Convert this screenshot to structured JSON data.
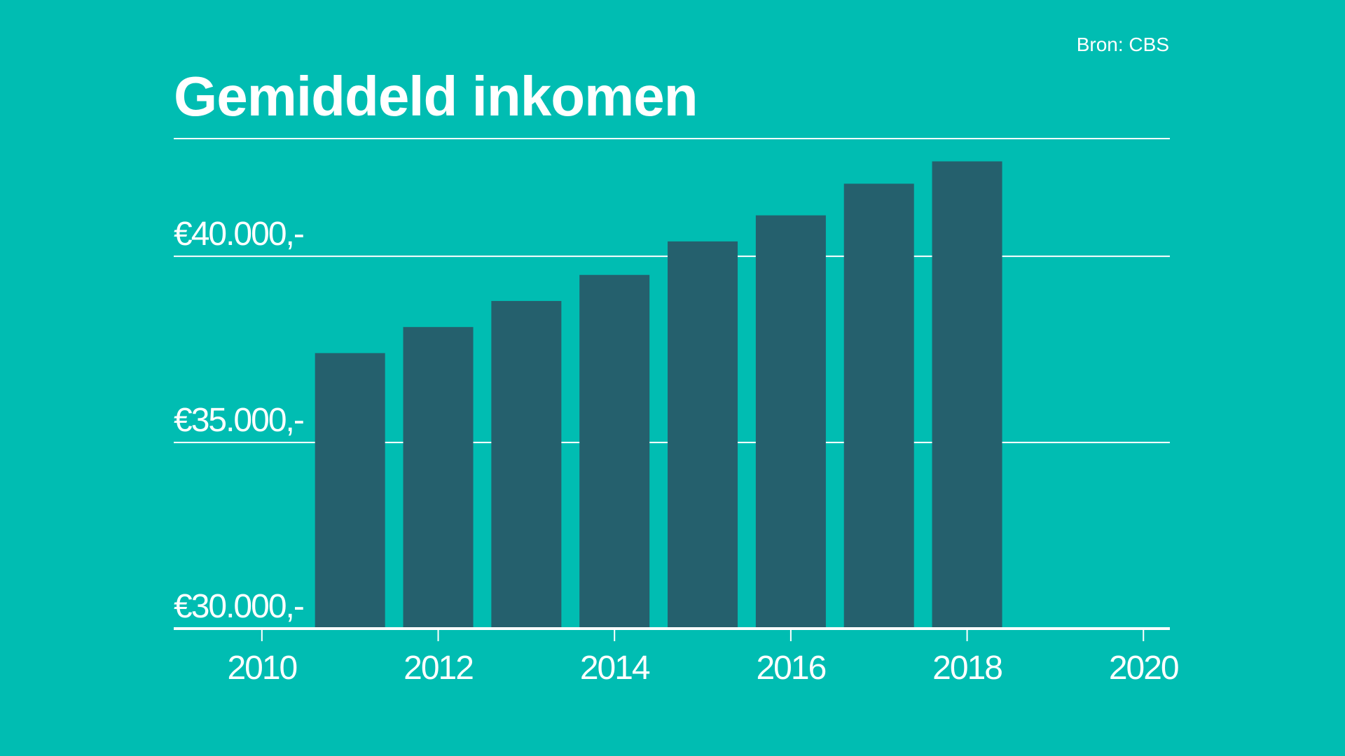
{
  "source": "Bron: CBS",
  "title": "Gemiddeld inkomen",
  "colors": {
    "background": "#00BDB2",
    "bar": "#25606D",
    "text": "#FFFFFF"
  },
  "chart_data": {
    "type": "bar",
    "title": "Gemiddeld inkomen",
    "xlabel": "",
    "ylabel": "",
    "categories": [
      2011,
      2012,
      2013,
      2014,
      2015,
      2016,
      2017,
      2018
    ],
    "values": [
      37400,
      38100,
      38800,
      39500,
      40400,
      41100,
      41950,
      42550
    ],
    "ylim": [
      30000,
      43500
    ],
    "xlim": [
      2009,
      2020.3
    ],
    "x_ticks": [
      2010,
      2012,
      2014,
      2016,
      2018,
      2020
    ],
    "x_tick_labels": [
      "2010",
      "2012",
      "2014",
      "2016",
      "2018",
      "2020"
    ],
    "y_ticks": [
      30000,
      35000,
      40000
    ],
    "y_tick_labels": [
      "€30.000,-",
      "€35.000,-",
      "€40.000,-"
    ],
    "grid": true
  }
}
